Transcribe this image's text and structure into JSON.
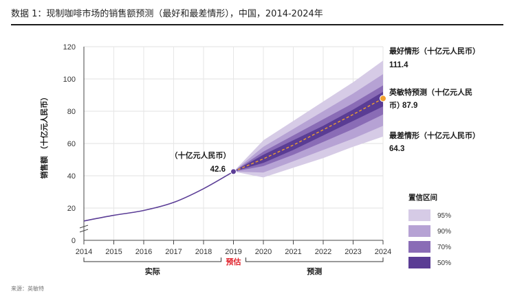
{
  "title": "数据 1：现制咖啡市场的销售额预测（最好和最差情形），中国，2014-2024年",
  "source": "来源：英敏特",
  "colors": {
    "line": "#5b3d96",
    "forecast": "#f0a030",
    "band95": "#d6cbe6",
    "band90": "#b6a2d4",
    "band70": "#8a6cb6",
    "band50": "#5a3c94",
    "forecast_label": "#e0202a"
  },
  "chart_data": {
    "type": "area",
    "title": "现制咖啡市场的销售额预测（最好和最差情形），中国，2014-2024年",
    "ylabel": "销售额 （十亿元人民币）",
    "ylim": [
      0,
      120
    ],
    "yticks": [
      "0",
      "20",
      "40",
      "60",
      "80",
      "100",
      "120"
    ],
    "x": [
      2014,
      2015,
      2016,
      2017,
      2018,
      2019,
      2020,
      2021,
      2022,
      2023,
      2024
    ],
    "xtick_labels": [
      "2014",
      "2015",
      "2016",
      "2017",
      "2018",
      "2019",
      "2020",
      "2021",
      "2022",
      "2023",
      "2024"
    ],
    "actual": {
      "name": "实际",
      "x": [
        2014,
        2015,
        2016,
        2017,
        2018,
        2019
      ],
      "values": [
        12.0,
        15.5,
        18.5,
        23.5,
        32.0,
        42.6
      ]
    },
    "forecast": {
      "name": "英敏特预测",
      "x": [
        2019,
        2020,
        2021,
        2022,
        2023,
        2024
      ],
      "values": [
        42.6,
        50.5,
        59.0,
        68.5,
        78.0,
        87.9
      ]
    },
    "confidence_bands": [
      {
        "name": "95%",
        "upper": [
          42.6,
          62,
          74,
          86,
          98,
          111.4
        ],
        "lower": [
          42.6,
          39,
          45,
          51,
          58,
          64.3
        ]
      },
      {
        "name": "90%",
        "upper": [
          42.6,
          58,
          69,
          80,
          91,
          103
        ],
        "lower": [
          42.6,
          42,
          49,
          56,
          63,
          71
        ]
      },
      {
        "name": "70%",
        "upper": [
          42.6,
          55,
          65,
          75,
          85,
          96
        ],
        "lower": [
          42.6,
          46,
          53,
          61,
          69,
          78
        ]
      },
      {
        "name": "50%",
        "upper": [
          42.6,
          53,
          62,
          71,
          81,
          92
        ],
        "lower": [
          42.6,
          48,
          56,
          65,
          74,
          83
        ]
      }
    ],
    "annotations": {
      "start_unit": "（十亿元人民币）",
      "start_value": "42.6",
      "best_label": "最好情形（十亿元人民币）",
      "best_value": "111.4",
      "mintel_label_1": "英敏特预测（十亿元人民",
      "mintel_label_2": "币）",
      "mintel_value": "87.9",
      "worst_label": "最差情形（十亿元人民币）",
      "worst_value": "64.3"
    },
    "periods": {
      "actual": "实际",
      "estimate": "预估",
      "forecast": "预测"
    },
    "legend": {
      "title": "置信区间",
      "items": [
        "95%",
        "90%",
        "70%",
        "50%"
      ]
    }
  }
}
